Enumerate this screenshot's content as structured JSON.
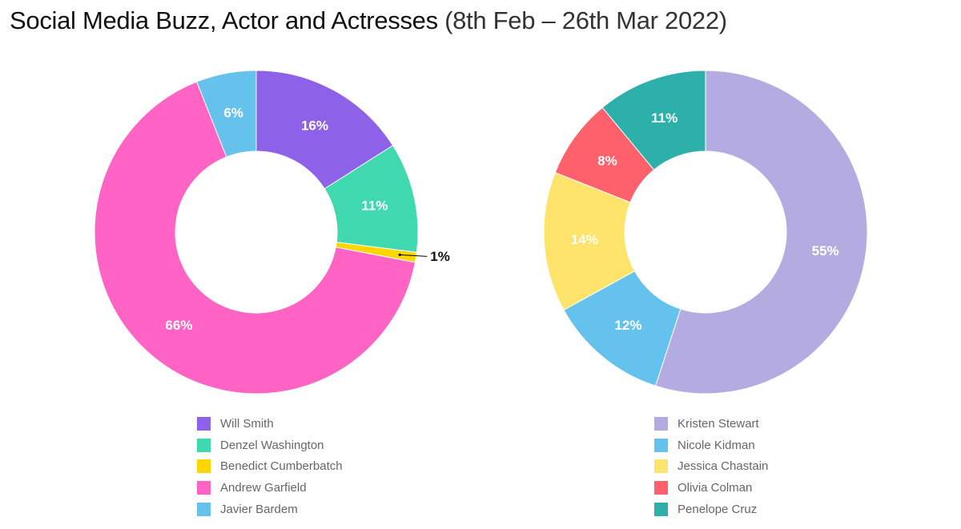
{
  "title": {
    "main": "Social Media Buzz, Actor and Actresses",
    "sub": "(8th Feb – 26th Mar 2022)"
  },
  "chart_data": [
    {
      "type": "pie",
      "donut": true,
      "legend_position": "bottom",
      "slices": [
        {
          "label": "Will Smith",
          "value": 16,
          "value_label": "16%",
          "color": "#8E61E9"
        },
        {
          "label": "Denzel Washington",
          "value": 11,
          "value_label": "11%",
          "color": "#40D8AE"
        },
        {
          "label": "Benedict Cumberbatch",
          "value": 1,
          "value_label": "1%",
          "color": "#FDD600"
        },
        {
          "label": "Andrew Garfield",
          "value": 66,
          "value_label": "66%",
          "color": "#FF64C4"
        },
        {
          "label": "Javier Bardem",
          "value": 6,
          "value_label": "6%",
          "color": "#65C2EC"
        }
      ]
    },
    {
      "type": "pie",
      "donut": true,
      "legend_position": "bottom",
      "slices": [
        {
          "label": "Kristen Stewart",
          "value": 55,
          "value_label": "55%",
          "color": "#B4ACE1"
        },
        {
          "label": "Nicole Kidman",
          "value": 12,
          "value_label": "12%",
          "color": "#65C2EC"
        },
        {
          "label": "Jessica Chastain",
          "value": 14,
          "value_label": "14%",
          "color": "#FEE46A"
        },
        {
          "label": "Olivia Colman",
          "value": 8,
          "value_label": "8%",
          "color": "#FF616C"
        },
        {
          "label": "Penelope Cruz",
          "value": 11,
          "value_label": "11%",
          "color": "#2DB0AA"
        }
      ]
    }
  ]
}
